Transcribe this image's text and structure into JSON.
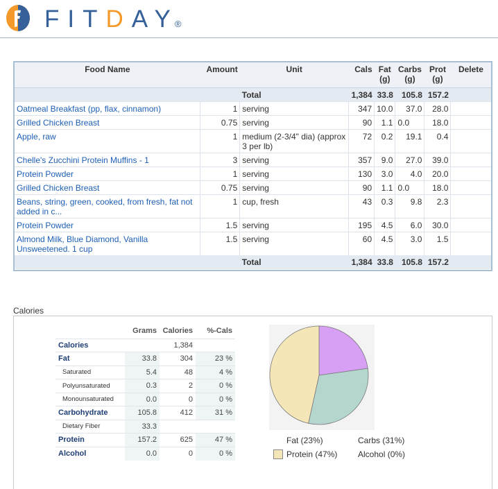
{
  "brand": {
    "name_part1": "F",
    "name_part2": "I",
    "name_part3": "T",
    "name_part4": "D",
    "name_part5": "A",
    "name_part6": "Y",
    "reg": "®",
    "blue": "#35609a",
    "orange": "#f39a2b"
  },
  "food_table": {
    "headers": {
      "food_name": "Food Name",
      "amount": "Amount",
      "unit": "Unit",
      "cals": "Cals",
      "fat": "Fat",
      "fat_unit": "(g)",
      "carbs": "Carbs",
      "carbs_unit": "(g)",
      "prot": "Prot",
      "prot_unit": "(g)",
      "delete": "Delete"
    },
    "total": {
      "label": "Total",
      "cals": "1,384",
      "fat": "33.8",
      "carbs": "105.8",
      "prot": "157.2"
    },
    "items": [
      {
        "name": "Oatmeal Breakfast (pp, flax, cinnamon)",
        "amount": "1",
        "unit": "serving",
        "cals": "347",
        "fat": "10.0",
        "carbs": "37.0",
        "prot": "28.0"
      },
      {
        "name": "Grilled Chicken Breast",
        "amount": "0.75",
        "unit": "serving",
        "cals": "90",
        "fat": "1.1",
        "carbs": "0.0",
        "prot": "18.0"
      },
      {
        "name": "Apple, raw",
        "amount": "1",
        "unit": "medium (2-3/4\" dia) (approx 3 per lb)",
        "cals": "72",
        "fat": "0.2",
        "carbs": "19.1",
        "prot": "0.4"
      },
      {
        "name": "Chelle's Zucchini Protein Muffins - 1",
        "amount": "3",
        "unit": "serving",
        "cals": "357",
        "fat": "9.0",
        "carbs": "27.0",
        "prot": "39.0"
      },
      {
        "name": "Protein Powder",
        "amount": "1",
        "unit": "serving",
        "cals": "130",
        "fat": "3.0",
        "carbs": "4.0",
        "prot": "20.0"
      },
      {
        "name": "Grilled Chicken Breast",
        "amount": "0.75",
        "unit": "serving",
        "cals": "90",
        "fat": "1.1",
        "carbs": "0.0",
        "prot": "18.0"
      },
      {
        "name": "Beans, string, green, cooked, from fresh, fat not added in c...",
        "amount": "1",
        "unit": "cup, fresh",
        "cals": "43",
        "fat": "0.3",
        "carbs": "9.8",
        "prot": "2.3"
      },
      {
        "name": "Protein Powder",
        "amount": "1.5",
        "unit": "serving",
        "cals": "195",
        "fat": "4.5",
        "carbs": "6.0",
        "prot": "30.0"
      },
      {
        "name": "Almond Milk, Blue Diamond, Vanilla Unsweetened. 1 cup",
        "amount": "1.5",
        "unit": "serving",
        "cals": "60",
        "fat": "4.5",
        "carbs": "3.0",
        "prot": "1.5"
      }
    ]
  },
  "calories_section": {
    "title": "Calories",
    "headers": {
      "grams": "Grams",
      "calories": "Calories",
      "pct": "%-Cals"
    },
    "rows": {
      "calories": {
        "label": "Calories",
        "calories": "1,384"
      },
      "fat": {
        "label": "Fat",
        "grams": "33.8",
        "calories": "304",
        "pct": "23 %"
      },
      "saturated": {
        "label": "Saturated",
        "grams": "5.4",
        "calories": "48",
        "pct": "4 %"
      },
      "poly": {
        "label": "Polyunsaturated",
        "grams": "0.3",
        "calories": "2",
        "pct": "0 %"
      },
      "mono": {
        "label": "Monounsaturated",
        "grams": "0.0",
        "calories": "0",
        "pct": "0 %"
      },
      "carb": {
        "label": "Carbohydrate",
        "grams": "105.8",
        "calories": "412",
        "pct": "31 %"
      },
      "fiber": {
        "label": "Dietary Fiber",
        "grams": "33.3"
      },
      "protein": {
        "label": "Protein",
        "grams": "157.2",
        "calories": "625",
        "pct": "47 %"
      },
      "alcohol": {
        "label": "Alcohol",
        "grams": "0.0",
        "calories": "0",
        "pct": "0 %"
      }
    }
  },
  "chart_data": {
    "type": "pie",
    "title": "",
    "slices": [
      {
        "name": "Fat",
        "value": 23,
        "color": "#d8a0f5"
      },
      {
        "name": "Carbs",
        "value": 31,
        "color": "#b5d5cf"
      },
      {
        "name": "Protein",
        "value": 47,
        "color": "#f5e6b8"
      },
      {
        "name": "Alcohol",
        "value": 0,
        "color": "#cccccc"
      }
    ],
    "legend": {
      "fat": "Fat  (23%)",
      "carbs": "Carbs  (31%)",
      "protein": "Protein  (47%)",
      "alcohol": "Alcohol  (0%)"
    }
  }
}
